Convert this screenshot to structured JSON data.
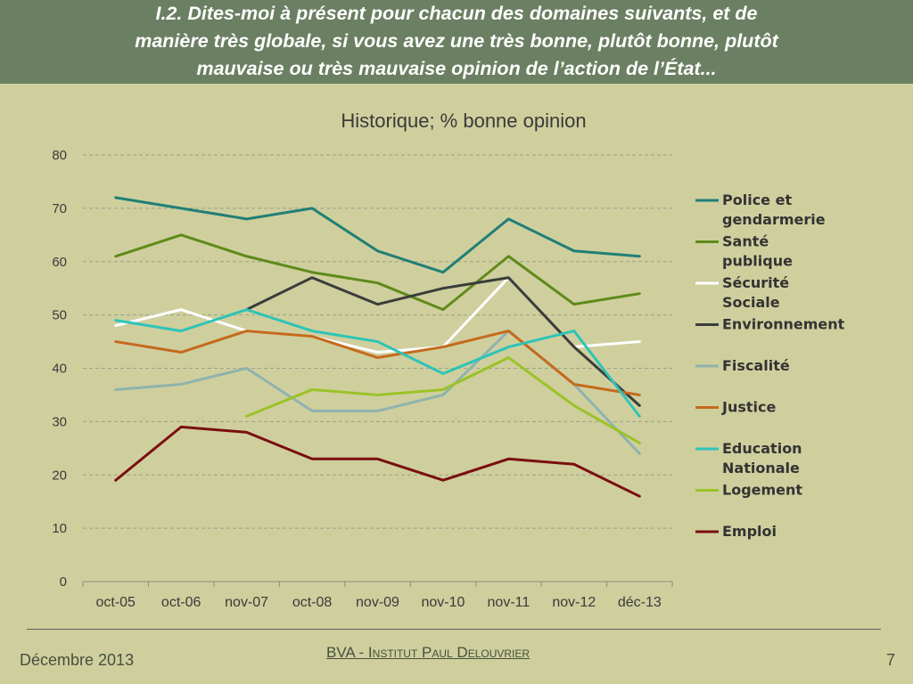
{
  "slide": {
    "title": "I.2. Dites-moi à présent pour chacun des domaines suivants, et de\nmanière très globale, si vous avez une très bonne, plutôt bonne, plutôt\nmauvaise ou très mauvaise opinion de l’action de l’État...",
    "footer_date": "Décembre 2013",
    "footer_brand": "BVA - Institut Paul Delouvrier",
    "page_number": "7"
  },
  "chart_data": {
    "type": "line",
    "title": "Historique; % bonne opinion",
    "xlabel": "",
    "ylabel": "",
    "ylim": [
      0,
      80
    ],
    "yticks": [
      0,
      10,
      20,
      30,
      40,
      50,
      60,
      70,
      80
    ],
    "grid": "horizontal dashed",
    "legend": "right",
    "categories": [
      "oct-05",
      "oct-06",
      "nov-07",
      "oct-08",
      "nov-09",
      "nov-10",
      "nov-11",
      "nov-12",
      "déc-13"
    ],
    "series": [
      {
        "name": "Police et gendarmerie",
        "color": "#217f76",
        "values": [
          72,
          70,
          68,
          70,
          62,
          58,
          68,
          62,
          61
        ]
      },
      {
        "name": "Santé publique",
        "color": "#5f8a1a",
        "values": [
          61,
          65,
          61,
          58,
          56,
          51,
          61,
          52,
          54
        ]
      },
      {
        "name": "Sécurité Sociale",
        "color": "#ffffff",
        "values": [
          48,
          51,
          47,
          46,
          43,
          44,
          57,
          44,
          45
        ]
      },
      {
        "name": "Environnement",
        "color": "#3a3d3a",
        "values": [
          null,
          null,
          51,
          57,
          52,
          55,
          57,
          44,
          33
        ]
      },
      {
        "name": "Fiscalité",
        "color": "#8fb3ad",
        "values": [
          36,
          37,
          40,
          32,
          32,
          35,
          47,
          37,
          24
        ]
      },
      {
        "name": "Justice",
        "color": "#c56a1c",
        "values": [
          45,
          43,
          47,
          46,
          42,
          44,
          47,
          37,
          35
        ]
      },
      {
        "name": "Education Nationale",
        "color": "#2ec4b6",
        "values": [
          49,
          47,
          51,
          47,
          45,
          39,
          44,
          47,
          31
        ]
      },
      {
        "name": "Logement",
        "color": "#9cc227",
        "values": [
          null,
          null,
          31,
          36,
          35,
          36,
          42,
          33,
          26
        ]
      },
      {
        "name": "Emploi",
        "color": "#7a0f0f",
        "values": [
          19,
          29,
          28,
          23,
          23,
          19,
          23,
          22,
          16
        ]
      }
    ]
  }
}
